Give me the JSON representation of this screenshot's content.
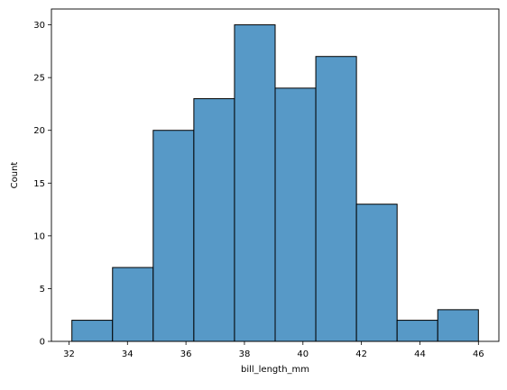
{
  "chart_data": {
    "type": "bar",
    "subtype": "histogram",
    "xlabel": "bill_length_mm",
    "ylabel": "Count",
    "bins": [
      {
        "x0": 32.1,
        "x1": 33.49,
        "count": 2
      },
      {
        "x0": 33.49,
        "x1": 34.88,
        "count": 7
      },
      {
        "x0": 34.88,
        "x1": 36.27,
        "count": 20
      },
      {
        "x0": 36.27,
        "x1": 37.66,
        "count": 23
      },
      {
        "x0": 37.66,
        "x1": 39.05,
        "count": 30
      },
      {
        "x0": 39.05,
        "x1": 40.44,
        "count": 24
      },
      {
        "x0": 40.44,
        "x1": 41.83,
        "count": 27
      },
      {
        "x0": 41.83,
        "x1": 43.22,
        "count": 13
      },
      {
        "x0": 43.22,
        "x1": 44.61,
        "count": 2
      },
      {
        "x0": 44.61,
        "x1": 46.0,
        "count": 3
      }
    ],
    "xlim": [
      31.4,
      46.7
    ],
    "ylim": [
      0,
      31.5
    ],
    "xticks": [
      32,
      34,
      36,
      38,
      40,
      42,
      44,
      46
    ],
    "yticks": [
      0,
      5,
      10,
      15,
      20,
      25,
      30
    ],
    "bar_color": "#5799c7",
    "edge_color": "#000000",
    "grid": false
  }
}
